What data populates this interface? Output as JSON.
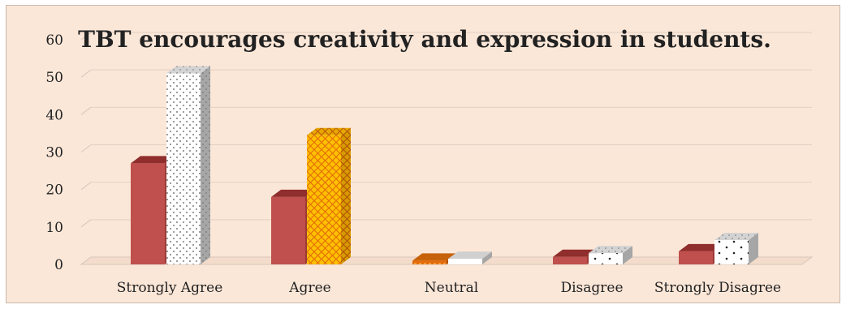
{
  "chart_data": {
    "type": "bar",
    "style": "3d-clustered-column",
    "title": "TBT encourages creativity and expression in students.",
    "xlabel": "",
    "ylabel": "",
    "ylim": [
      0,
      60
    ],
    "yticks": [
      0,
      10,
      20,
      30,
      40,
      50,
      60
    ],
    "grid": true,
    "legend": "none",
    "categories": [
      "Strongly Agree",
      "Agree",
      "Neutral",
      "Disagree",
      "Strongly Disagree"
    ],
    "series": [
      {
        "values": [
          27,
          18,
          1,
          2,
          3.5
        ]
      },
      {
        "values": [
          51,
          34.5,
          1.5,
          3,
          6.5
        ]
      }
    ],
    "colors": {
      "background": "#fbe7d8",
      "series_a": "#c0504d",
      "series_a_top": "#8f2e2c",
      "series_a_side": "#9b3a37",
      "series_b_white": "#ffffff",
      "series_b_gold": "#ffc000",
      "series_b_orange": "#e36c09",
      "side_gray": "#a6a6a6",
      "top_gray": "#d0d0d0",
      "grid": "#e8d7ca"
    }
  }
}
